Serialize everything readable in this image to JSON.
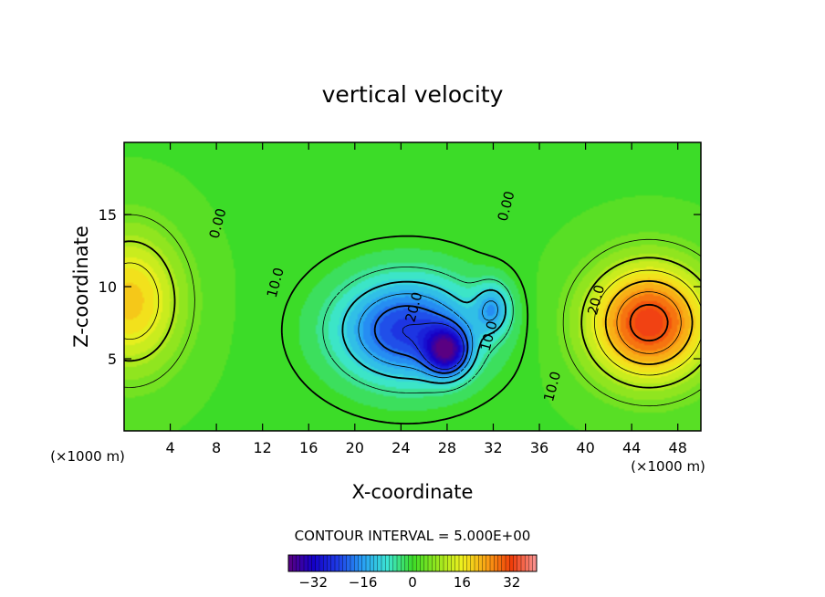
{
  "chart_data": {
    "type": "heatmap",
    "title": "vertical velocity",
    "xlabel": "X-coordinate",
    "ylabel": "Z-coordinate",
    "x_unit_left": "(×1000 m)",
    "x_unit_right": "(×1000 m)",
    "xlim": [
      0,
      50
    ],
    "ylim": [
      0,
      20
    ],
    "xticks": [
      4,
      8,
      12,
      16,
      20,
      24,
      28,
      32,
      36,
      40,
      44,
      48
    ],
    "yticks": [
      5,
      10,
      15
    ],
    "contour_interval_text": "CONTOUR INTERVAL = 5.000E+00",
    "colorbar": {
      "range": [
        -40,
        40
      ],
      "ticks": [
        -32,
        -16,
        0,
        16,
        32
      ],
      "tick_labels": [
        "−32",
        "−16",
        "0",
        "16",
        "32"
      ]
    },
    "contour_labels": [
      {
        "text": "0.00",
        "x": 8.5,
        "y": 14.3
      },
      {
        "text": "0.00",
        "x": 33.5,
        "y": 15.5
      },
      {
        "text": "10.0",
        "x": 13.5,
        "y": 10.2
      },
      {
        "text": "20.0",
        "x": 25.5,
        "y": 8.5
      },
      {
        "text": "10.0",
        "x": 32.0,
        "y": 6.5
      },
      {
        "text": "20.0",
        "x": 41.3,
        "y": 9.0
      },
      {
        "text": "10.0",
        "x": 37.5,
        "y": 3.0
      }
    ],
    "field_features": [
      {
        "kind": "max",
        "x": 45.5,
        "y": 7.5,
        "value": 33
      },
      {
        "kind": "max",
        "x": 0.5,
        "y": 9.0,
        "value": 20
      },
      {
        "kind": "min",
        "x": 24.5,
        "y": 7.0,
        "value": -25
      },
      {
        "kind": "min",
        "x": 28.0,
        "y": 5.5,
        "value": -27
      },
      {
        "kind": "min",
        "x": 32.0,
        "y": 8.5,
        "value": -12
      }
    ],
    "background_value": 1
  }
}
